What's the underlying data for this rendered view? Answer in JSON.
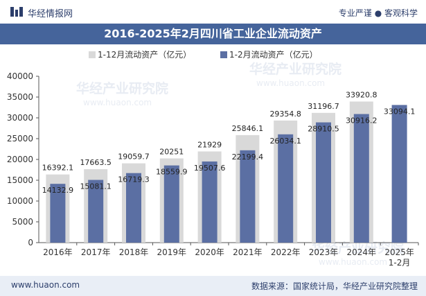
{
  "header": {
    "brand": "华经情报网",
    "slogan": "专业严谨 ● 客观科学"
  },
  "chart_data": {
    "type": "bar",
    "title": "2016-2025年2月四川省工业企业流动资产",
    "categories": [
      "2016年",
      "2017年",
      "2018年",
      "2019年",
      "2020年",
      "2021年",
      "2022年",
      "2023年",
      "2024年",
      "2025年\n1-2月"
    ],
    "series": [
      {
        "name": "1-12月流动资产（亿元）",
        "color": "#d9d9d9",
        "values": [
          16392.1,
          17663.5,
          19059.7,
          20251,
          21929,
          25846.1,
          29354.8,
          31196.7,
          33920.8,
          null
        ],
        "labels": [
          "16392.1",
          "17663.5",
          "19059.7",
          "20251",
          "21929",
          "25846.1",
          "29354.8",
          "31196.7",
          "33920.8",
          ""
        ]
      },
      {
        "name": "1-2月流动资产（亿元）",
        "color": "#5b6fa3",
        "values": [
          14132.9,
          15081.1,
          16719.3,
          18559.9,
          19507.6,
          22199.4,
          26034.1,
          28910.5,
          30916.2,
          33094.1
        ],
        "labels": [
          "14132.9",
          "15081.1",
          "16719.3",
          "18559.9",
          "19507.6",
          "22199.4",
          "26034.1",
          "28910.5",
          "30916.2",
          "33094.1"
        ]
      }
    ],
    "ylim": [
      0,
      40000
    ],
    "yticks": [
      "0",
      "5000",
      "10000",
      "15000",
      "20000",
      "25000",
      "30000",
      "35000",
      "40000"
    ],
    "legend": "top-center",
    "grid": false
  },
  "watermark": "华经产业研究院",
  "watermark_url": "www.huaon.com",
  "footer": {
    "site": "www.huaon.com",
    "source": "数据来源：国家统计局，华经产业研究院整理"
  }
}
